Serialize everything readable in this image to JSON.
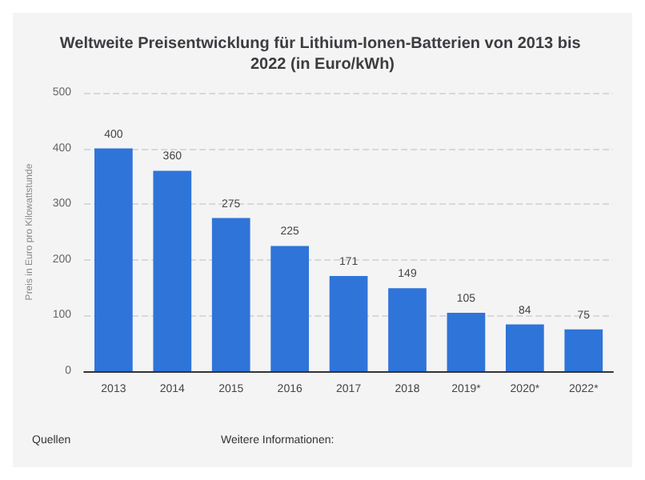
{
  "chart_data": {
    "type": "bar",
    "title": "Weltweite Preisentwicklung für Lithium-Ionen-Batterien von 2013 bis 2022 (in Euro/kWh)",
    "ylabel": "Preis in Euro pro Kilowattstunde",
    "categories": [
      "2013",
      "2014",
      "2015",
      "2016",
      "2017",
      "2018",
      "2019*",
      "2020*",
      "2022*"
    ],
    "values": [
      400,
      360,
      275,
      225,
      171,
      149,
      105,
      84,
      75
    ],
    "color": "#2f74d9",
    "ylim": [
      0,
      500
    ],
    "yticks": [
      0,
      100,
      200,
      300,
      400,
      500
    ],
    "grid": "y",
    "data_labels": true,
    "annotations": [
      "Quellen",
      "Weitere Informationen:"
    ]
  }
}
